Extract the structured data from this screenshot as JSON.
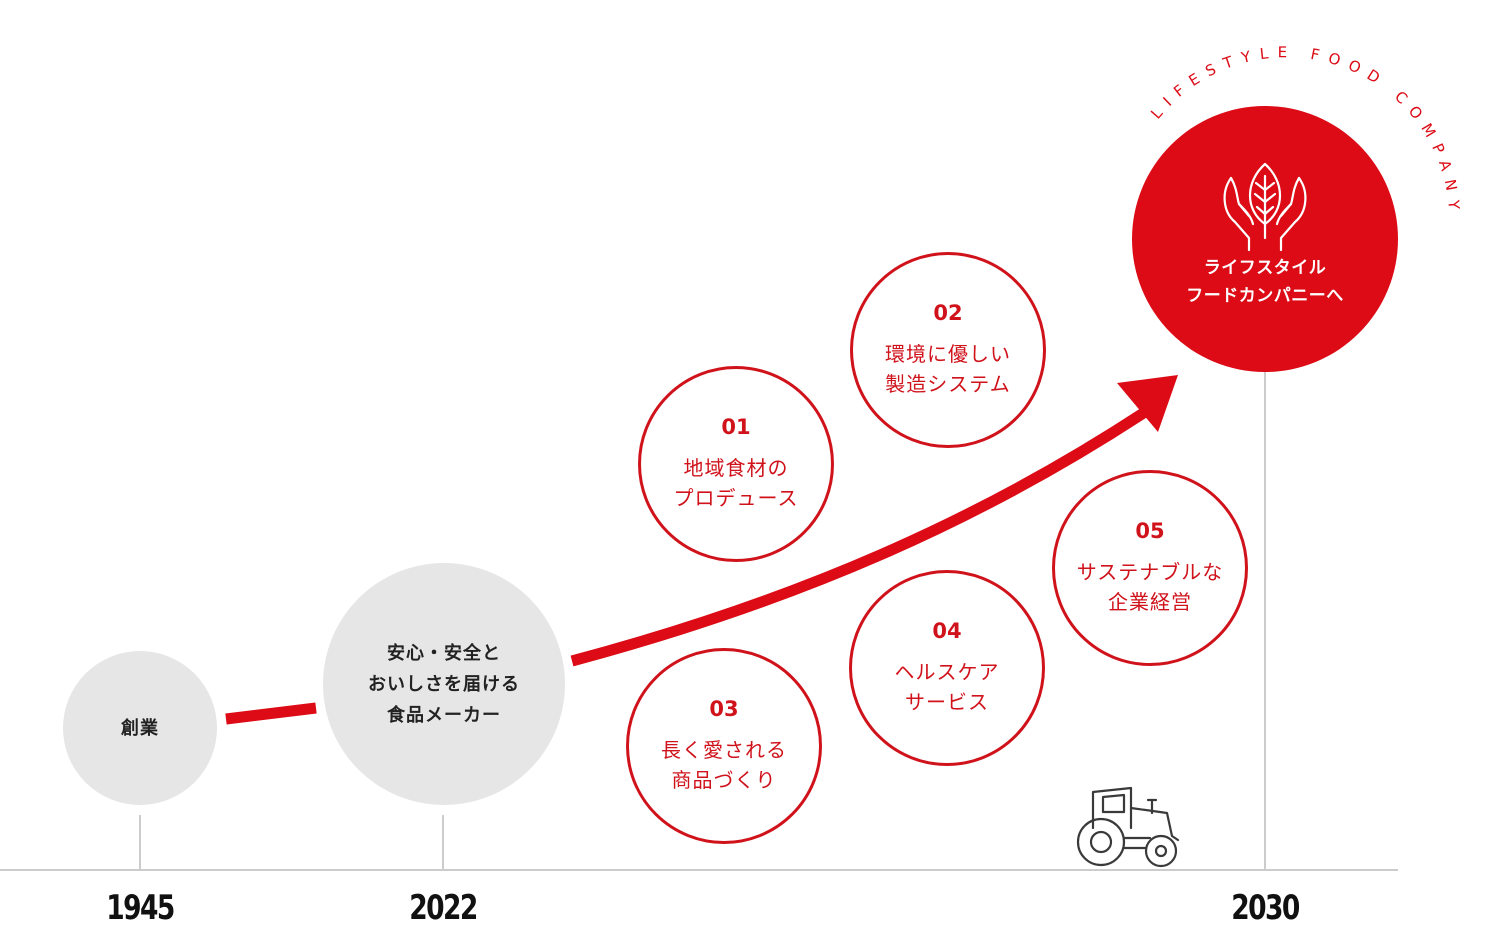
{
  "milestones": [
    {
      "year": "1945",
      "label": "創業"
    },
    {
      "year": "2022",
      "label": "安心・安全と\nおいしさを届ける\n食品メーカー"
    },
    {
      "year": "2030",
      "label": "ライフスタイル\nフードカンパニーへ"
    }
  ],
  "goal": {
    "arc_text": "LIFESTYLE FOOD COMPANY",
    "icon": "leaf-hands-icon"
  },
  "pillars": [
    {
      "num": "01",
      "label": "地域食材の\nプロデュース"
    },
    {
      "num": "02",
      "label": "環境に優しい\n製造システム"
    },
    {
      "num": "03",
      "label": "長く愛される\n商品づくり"
    },
    {
      "num": "04",
      "label": "ヘルスケア\nサービス"
    },
    {
      "num": "05",
      "label": "サステナブルな\n企業経営"
    }
  ],
  "decor_icon": "tractor-icon",
  "colors": {
    "accent": "#dc0b16",
    "grey_circle": "#e6e6e6",
    "axis": "#cccccc"
  }
}
